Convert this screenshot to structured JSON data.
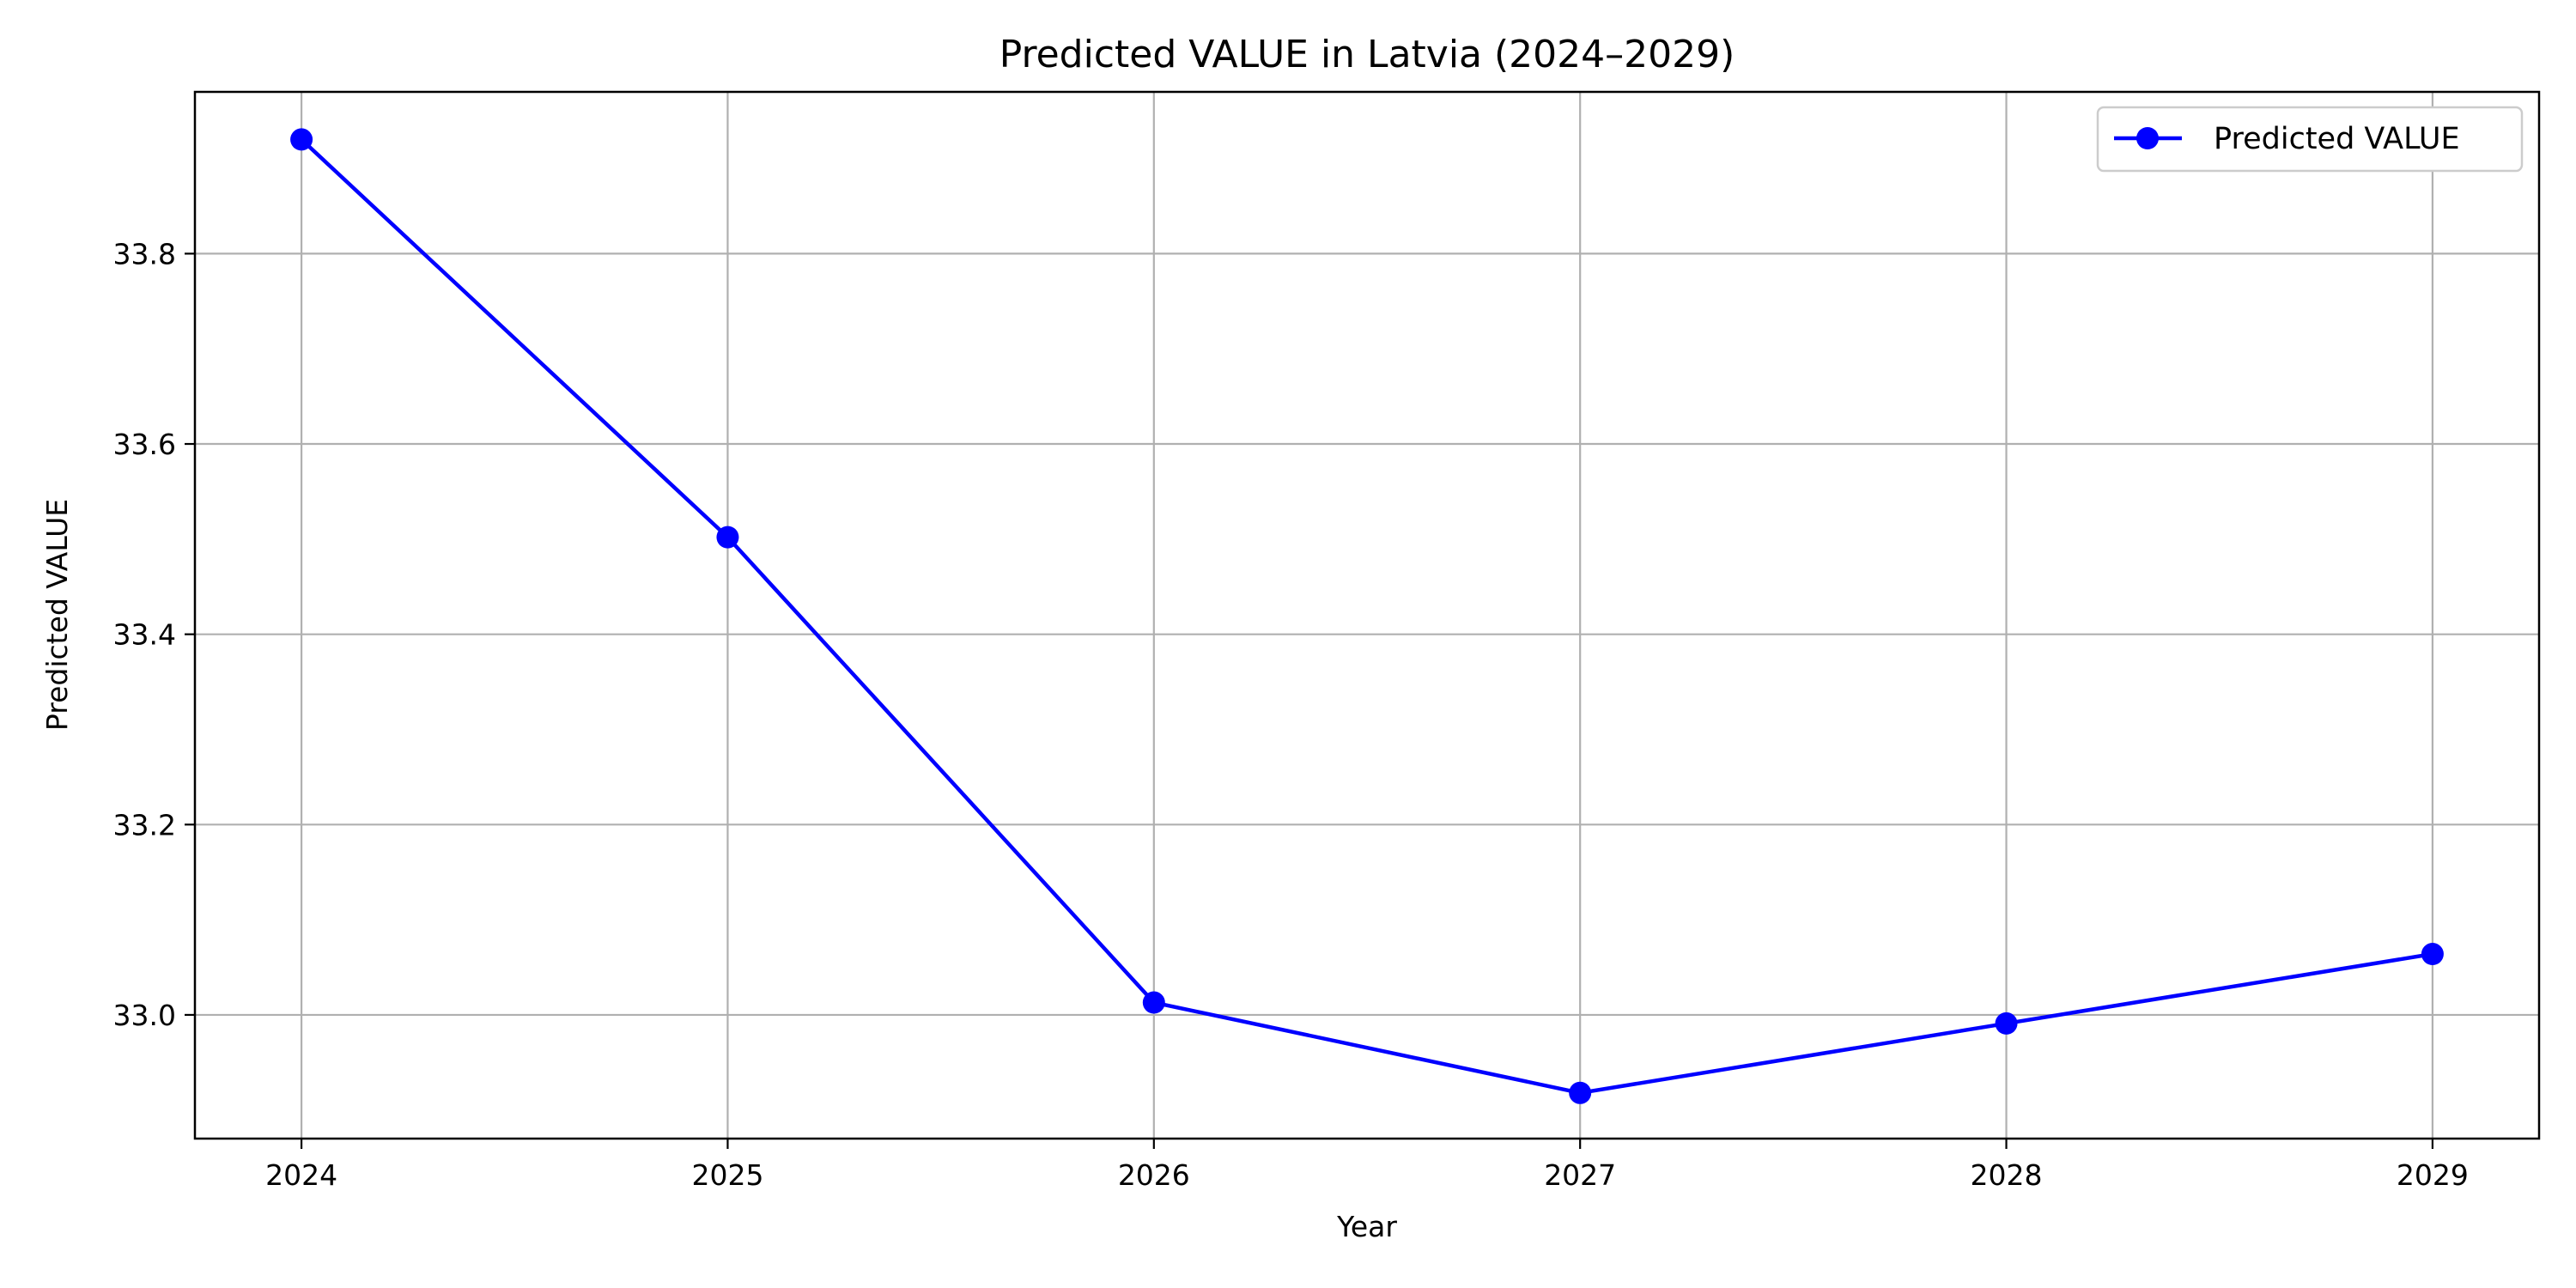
{
  "chart_data": {
    "type": "line",
    "title": "Predicted VALUE in Latvia (2024–2029)",
    "xlabel": "Year",
    "ylabel": "Predicted VALUE",
    "x": [
      2024,
      2025,
      2026,
      2027,
      2028,
      2029
    ],
    "series": [
      {
        "name": "Predicted VALUE",
        "values": [
          33.92,
          33.502,
          33.013,
          32.918,
          32.991,
          33.064
        ],
        "color": "#0000ff",
        "marker": "circle"
      }
    ],
    "xlim": [
      2023.75,
      2029.25
    ],
    "ylim": [
      32.87,
      33.97
    ],
    "xticks": [
      "2024",
      "2025",
      "2026",
      "2027",
      "2028",
      "2029"
    ],
    "yticks": [
      "33.0",
      "33.2",
      "33.4",
      "33.6",
      "33.8"
    ],
    "grid": true,
    "legend": "upper-right"
  }
}
